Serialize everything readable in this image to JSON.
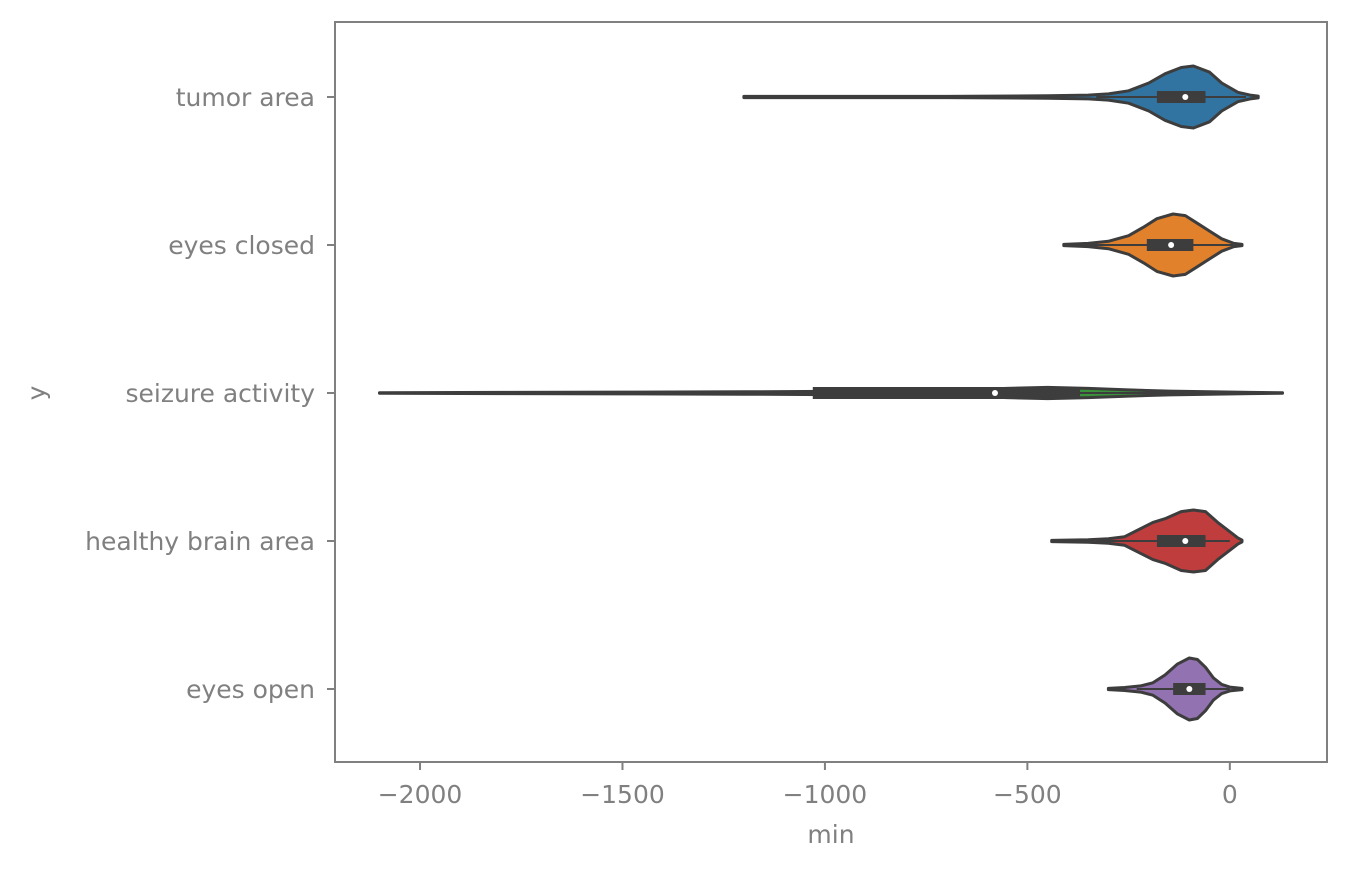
{
  "chart_data": {
    "type": "violin",
    "orientation": "horizontal",
    "xlabel": "min",
    "ylabel": "y",
    "xlim": [
      -2210,
      240
    ],
    "xticks": [
      -2000,
      -1500,
      -1000,
      -500,
      0
    ],
    "xtick_labels": [
      "−2000",
      "−1500",
      "−1000",
      "−500",
      "0"
    ],
    "grid": false,
    "categories": [
      "tumor area",
      "eyes closed",
      "seizure activity",
      "healthy brain area",
      "eyes open"
    ],
    "series": [
      {
        "category": "tumor area",
        "color": "#3274a1",
        "min": -1200,
        "max": 70,
        "q1": -180,
        "median": -110,
        "q3": -60,
        "whisker_low": -330,
        "whisker_high": 40,
        "density": [
          [
            -1200,
            0.02
          ],
          [
            -700,
            0.02
          ],
          [
            -450,
            0.04
          ],
          [
            -350,
            0.06
          ],
          [
            -300,
            0.1
          ],
          [
            -250,
            0.2
          ],
          [
            -200,
            0.45
          ],
          [
            -160,
            0.75
          ],
          [
            -120,
            0.95
          ],
          [
            -90,
            1.0
          ],
          [
            -50,
            0.8
          ],
          [
            -20,
            0.45
          ],
          [
            20,
            0.15
          ],
          [
            50,
            0.06
          ],
          [
            70,
            0.03
          ]
        ]
      },
      {
        "category": "eyes closed",
        "color": "#e1812c",
        "min": -410,
        "max": 30,
        "q1": -205,
        "median": -145,
        "q3": -90,
        "whisker_low": -370,
        "whisker_high": 10,
        "density": [
          [
            -410,
            0.02
          ],
          [
            -350,
            0.05
          ],
          [
            -300,
            0.12
          ],
          [
            -250,
            0.3
          ],
          [
            -210,
            0.6
          ],
          [
            -180,
            0.85
          ],
          [
            -140,
            1.0
          ],
          [
            -110,
            0.95
          ],
          [
            -80,
            0.7
          ],
          [
            -50,
            0.45
          ],
          [
            -20,
            0.2
          ],
          [
            10,
            0.05
          ],
          [
            30,
            0.02
          ]
        ]
      },
      {
        "category": "seizure activity",
        "color": "#3a923a",
        "min": -2100,
        "max": 130,
        "q1": -1030,
        "median": -580,
        "q3": -370,
        "whisker_low": -2100,
        "whisker_high": 0,
        "density": [
          [
            -2100,
            0.01
          ],
          [
            -1800,
            0.02
          ],
          [
            -1500,
            0.03
          ],
          [
            -1200,
            0.04
          ],
          [
            -1000,
            0.05
          ],
          [
            -800,
            0.06
          ],
          [
            -650,
            0.1
          ],
          [
            -550,
            0.15
          ],
          [
            -450,
            0.18
          ],
          [
            -350,
            0.15
          ],
          [
            -250,
            0.1
          ],
          [
            -150,
            0.06
          ],
          [
            -50,
            0.04
          ],
          [
            50,
            0.02
          ],
          [
            130,
            0.01
          ]
        ]
      },
      {
        "category": "healthy brain area",
        "color": "#c03d3e",
        "min": -440,
        "max": 30,
        "q1": -180,
        "median": -110,
        "q3": -60,
        "whisker_low": -330,
        "whisker_high": 0,
        "density": [
          [
            -440,
            0.02
          ],
          [
            -350,
            0.04
          ],
          [
            -300,
            0.07
          ],
          [
            -260,
            0.14
          ],
          [
            -220,
            0.4
          ],
          [
            -190,
            0.6
          ],
          [
            -160,
            0.72
          ],
          [
            -120,
            0.95
          ],
          [
            -90,
            1.0
          ],
          [
            -60,
            0.95
          ],
          [
            -30,
            0.6
          ],
          [
            0,
            0.3
          ],
          [
            20,
            0.1
          ],
          [
            30,
            0.03
          ]
        ]
      },
      {
        "category": "eyes open",
        "color": "#9372b2",
        "min": -300,
        "max": 30,
        "q1": -140,
        "median": -100,
        "q3": -60,
        "whisker_low": -230,
        "whisker_high": 0,
        "density": [
          [
            -300,
            0.02
          ],
          [
            -260,
            0.05
          ],
          [
            -220,
            0.1
          ],
          [
            -190,
            0.2
          ],
          [
            -160,
            0.45
          ],
          [
            -130,
            0.8
          ],
          [
            -100,
            1.0
          ],
          [
            -80,
            0.95
          ],
          [
            -60,
            0.7
          ],
          [
            -40,
            0.35
          ],
          [
            -20,
            0.15
          ],
          [
            0,
            0.06
          ],
          [
            30,
            0.02
          ]
        ]
      }
    ]
  }
}
